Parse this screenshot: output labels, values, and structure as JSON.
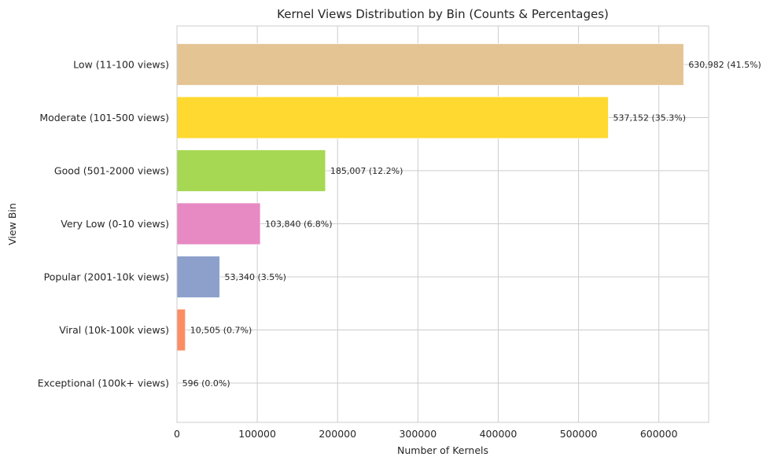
{
  "chart_data": {
    "type": "bar",
    "orientation": "horizontal",
    "title": "Kernel Views Distribution by Bin (Counts & Percentages)",
    "xlabel": "Number of Kernels",
    "ylabel": "View Bin",
    "xlim": [
      0,
      662000
    ],
    "xticks": [
      0,
      100000,
      200000,
      300000,
      400000,
      500000,
      600000
    ],
    "xtick_labels": [
      "0",
      "100000",
      "200000",
      "300000",
      "400000",
      "500000",
      "600000"
    ],
    "grid": true,
    "categories": [
      "Low (11-100 views)",
      "Moderate (101-500 views)",
      "Good (501-2000 views)",
      "Very Low (0-10 views)",
      "Popular (2001-10k views)",
      "Viral (10k-100k views)",
      "Exceptional (100k+ views)"
    ],
    "values": [
      630982,
      537152,
      185007,
      103840,
      53340,
      10505,
      596
    ],
    "data_labels": [
      "630,982  (41.5%)",
      "537,152  (35.3%)",
      "185,007  (12.2%)",
      "103,840  (6.8%)",
      "53,340  (3.5%)",
      "10,505  (0.7%)",
      "596  (0.0%)"
    ],
    "colors": [
      "#e5c494",
      "#ffd92f",
      "#a6d854",
      "#e78ac3",
      "#8da0cb",
      "#fc8d62",
      "#66c2a5"
    ]
  }
}
